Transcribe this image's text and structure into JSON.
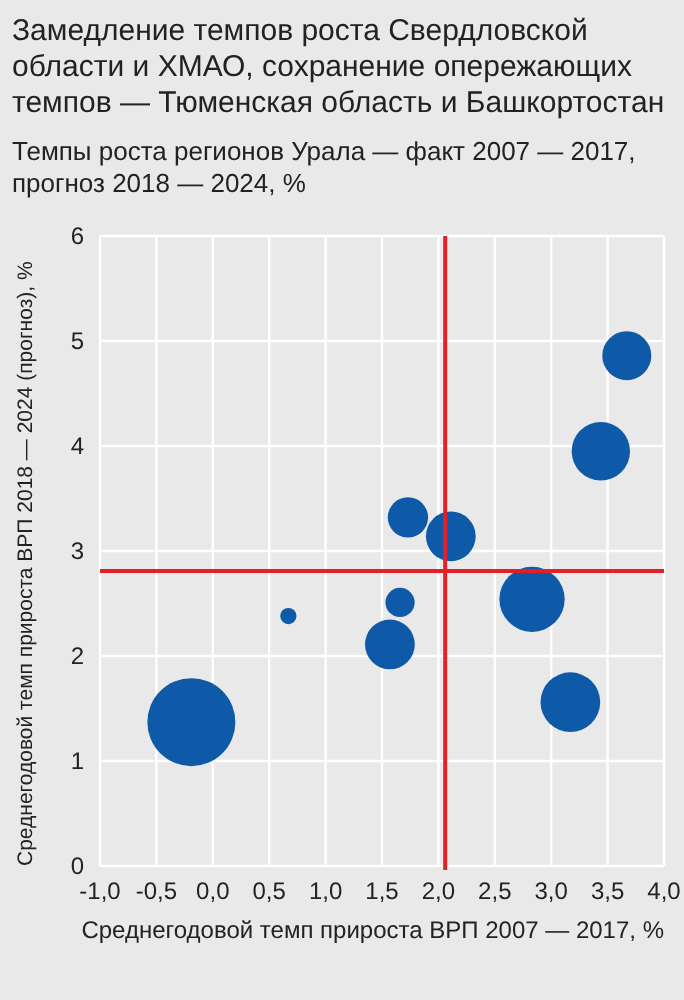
{
  "chart_data": {
    "type": "bubble",
    "title": "Замедление темпов роста Свердловской области и ХМАО, сохранение опережающих темпов — Тюменская область и Башкортостан",
    "subtitle": "Темпы роста регионов Урала — факт 2007 — 2017, прогноз 2018 — 2024, %",
    "xlabel": "Среднегодовой темп прироста ВРП 2007 — 2017, %",
    "ylabel": "Среднегодовой темп прироста ВРП 2018 — 2024 (прогноз), %",
    "x": [
      -0.19,
      0.67,
      1.57,
      1.66,
      1.73,
      2.11,
      2.83,
      3.17,
      3.44,
      3.67
    ],
    "values": [
      1.37,
      2.38,
      2.11,
      2.51,
      3.32,
      3.14,
      2.54,
      1.56,
      3.95,
      4.86
    ],
    "sizes": [
      1,
      0.034,
      0.32,
      0.11,
      0.21,
      0.32,
      0.55,
      0.46,
      0.44,
      0.31
    ],
    "color": "#0f5aa8",
    "xlim": [
      -1,
      4
    ],
    "ylim": [
      0,
      6
    ],
    "xticks": [
      {
        "value": -1,
        "label": "-1,0"
      },
      {
        "value": -0.5,
        "label": "-0,5"
      },
      {
        "value": 0,
        "label": "0,0"
      },
      {
        "value": 0.5,
        "label": "0,5"
      },
      {
        "value": 1,
        "label": "1,0"
      },
      {
        "value": 1.5,
        "label": "1,5"
      },
      {
        "value": 2,
        "label": "2,0"
      },
      {
        "value": 2.5,
        "label": "2,5"
      },
      {
        "value": 3,
        "label": "3,0"
      },
      {
        "value": 3.5,
        "label": "3,5"
      },
      {
        "value": 4,
        "label": "4,0"
      }
    ],
    "yticks": [
      0,
      1,
      2,
      3,
      4,
      5,
      6
    ],
    "ref_lines": [
      {
        "axis": "x",
        "value": 2.06,
        "color": "#e3202a"
      },
      {
        "axis": "y",
        "value": 2.81,
        "color": "#e3202a"
      }
    ],
    "grid": true
  }
}
